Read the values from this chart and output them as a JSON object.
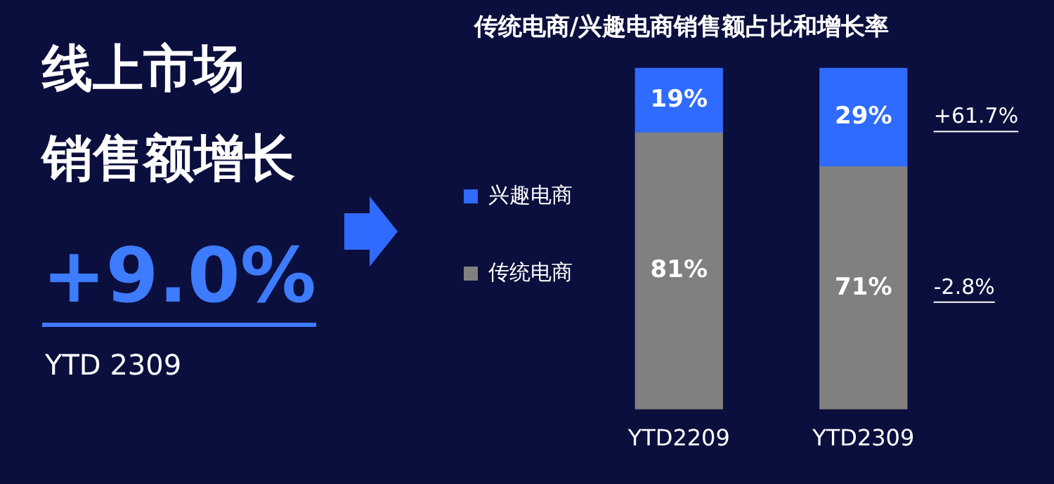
{
  "chart_data": [
    {
      "type": "other",
      "title": "线上市场",
      "subtitle": "销售额增长",
      "annotations": [
        "+9.0%",
        "YTD 2309"
      ]
    },
    {
      "type": "bar",
      "title": "传统电商/兴趣电商销售额占比和增长率",
      "categories": [
        "YTD2209",
        "YTD2309"
      ],
      "stacked": true,
      "tick_labels": "x",
      "grid": false,
      "legend": "left",
      "series": [
        {
          "name": "传统电商",
          "color": "#808080",
          "values": [
            81,
            71
          ],
          "value_labels": [
            "81%",
            "71%"
          ]
        },
        {
          "name": "兴趣电商",
          "color": "#2f6bff",
          "values": [
            19,
            29
          ],
          "value_labels": [
            "19%",
            "29%"
          ]
        }
      ],
      "annotations": [
        "+61.7%",
        "-2.8%"
      ]
    }
  ]
}
